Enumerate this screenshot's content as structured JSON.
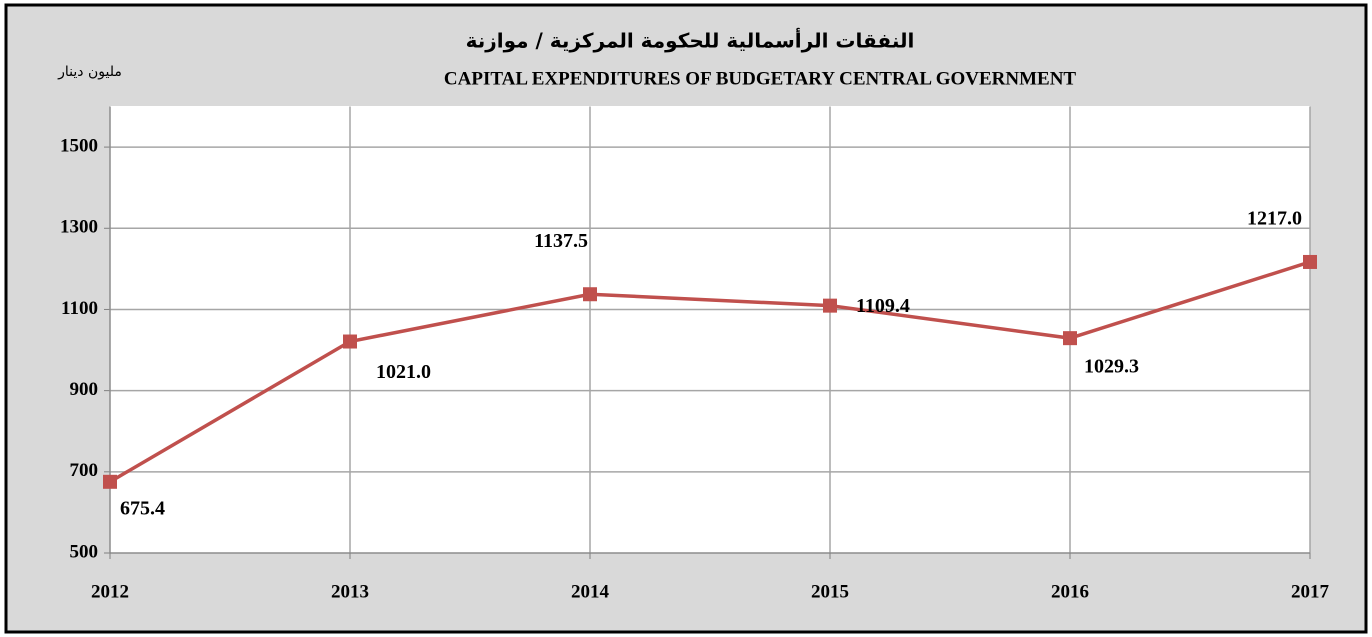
{
  "chart_data": {
    "type": "line",
    "title": "النفقات الرأسمالية للحكومة المركزية / موازنة",
    "subtitle": "CAPITAL EXPENDITURES OF BUDGETARY CENTRAL GOVERNMENT",
    "y_label": "مليون دينار",
    "x": [
      2012,
      2013,
      2014,
      2015,
      2016,
      2017
    ],
    "series": [
      {
        "name": "CAPITAL EXPENDITURES",
        "color": "#c0504d",
        "values": [
          675.4,
          1021.0,
          1137.5,
          1109.4,
          1029.3,
          1217.0
        ],
        "value_labels": [
          "675.4",
          "1021.0",
          "1137.5",
          "1109.4",
          "1029.3",
          "1217.0"
        ]
      }
    ],
    "xlim": [
      2012,
      2017
    ],
    "xticks": [
      2012,
      2013,
      2014,
      2015,
      2016,
      2017
    ],
    "ylim": [
      500,
      1600
    ],
    "yticks": [
      500,
      700,
      900,
      1100,
      1300,
      1500
    ],
    "grid": true
  }
}
